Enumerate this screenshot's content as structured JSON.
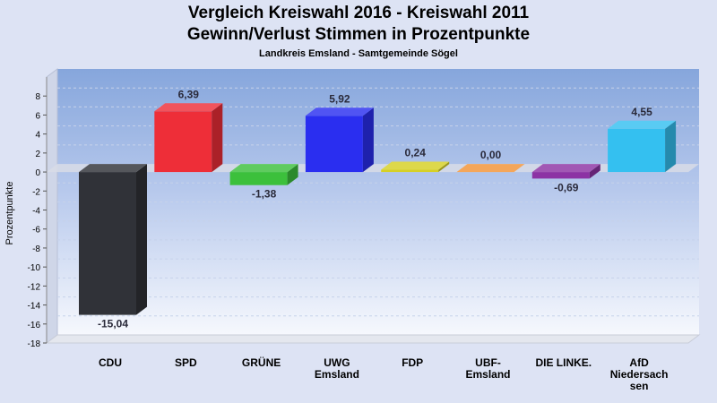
{
  "title": "Vergleich Kreiswahl 2016 - Kreiswahl 2011",
  "subtitle": "Gewinn/Verlust Stimmen in Prozentpunkte",
  "subsubtitle": "Landkreis Emsland - Samtgemeinde Sögel",
  "chart_data": {
    "type": "bar",
    "title": "Vergleich Kreiswahl 2016 - Kreiswahl 2011",
    "subtitle": "Gewinn/Verlust Stimmen in Prozentpunkte",
    "xlabel": "",
    "ylabel": "Prozentpunkte",
    "ylim": [
      -18,
      10
    ],
    "yticks": [
      8,
      6,
      4,
      2,
      0,
      -2,
      -4,
      -6,
      -8,
      -10,
      -12,
      -14,
      -16,
      -18
    ],
    "grid": true,
    "categories": [
      "CDU",
      "SPD",
      "GRÜNE",
      "UWG Emsland",
      "FDP",
      "UBF-Emsland",
      "DIE LINKE.",
      "AfD Niedersachsen"
    ],
    "category_lines": [
      [
        "CDU"
      ],
      [
        "SPD"
      ],
      [
        "GRÜNE"
      ],
      [
        "UWG",
        "Emsland"
      ],
      [
        "FDP"
      ],
      [
        "UBF-",
        "Emsland"
      ],
      [
        "DIE LINKE."
      ],
      [
        "AfD",
        "Niedersach",
        "sen"
      ]
    ],
    "values": [
      -15.04,
      6.39,
      -1.38,
      5.92,
      0.24,
      0.0,
      -0.69,
      4.55
    ],
    "value_labels": [
      "-15,04",
      "6,39",
      "-1,38",
      "5,92",
      "0,24",
      "0,00",
      "-0,69",
      "4,55"
    ],
    "colors": [
      "#303238",
      "#ee2e38",
      "#3cc03c",
      "#2a2ef0",
      "#d6d024",
      "#f29236",
      "#8c32a4",
      "#34c0f0"
    ]
  }
}
